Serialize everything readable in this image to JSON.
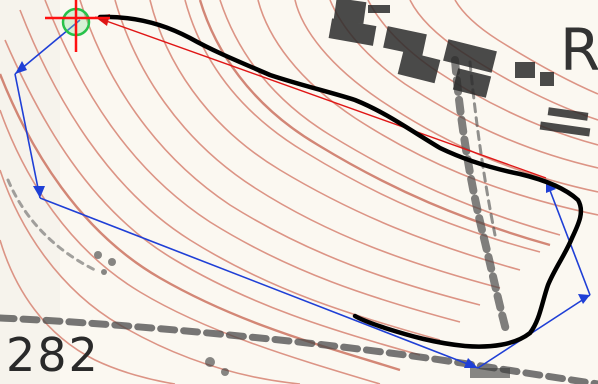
{
  "map": {
    "spot_height_label": "282",
    "edge_letter": "R",
    "colors": {
      "contour": "#d98a7a",
      "contour_index": "#c96a58",
      "route": "#1f3fd6",
      "direct_leg": "#e01616",
      "track": "#000000",
      "start_marker": "#27c24a",
      "start_cross": "#ff1010",
      "road": "#4a4a4a"
    },
    "icons": [
      "start-circle-icon",
      "start-cross-icon",
      "route-arrow-icon"
    ]
  }
}
